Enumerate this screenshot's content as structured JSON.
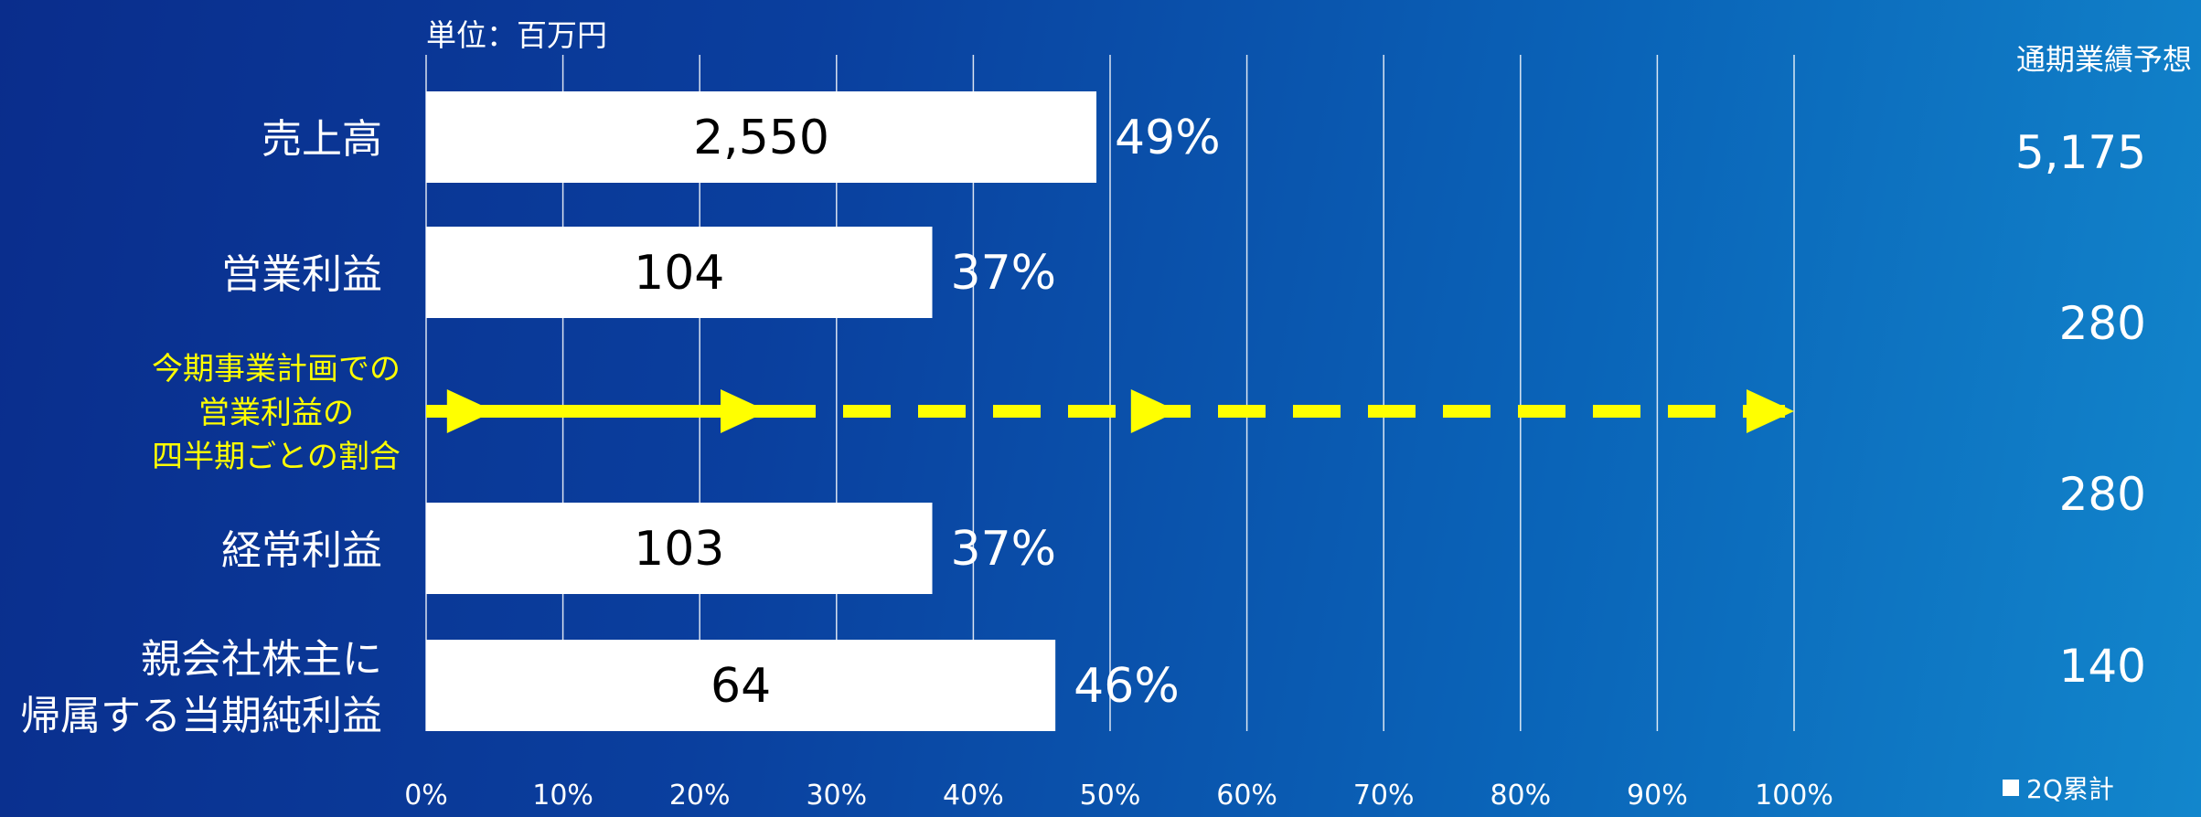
{
  "unit_label": "単位：百万円",
  "forecast_header": "通期業績予想",
  "legend_label": "2Q累計",
  "annotation": {
    "lines": [
      "今期事業計画での",
      "営業利益の",
      "四半期ごとの割合"
    ],
    "color": "#ffff00"
  },
  "chart_data": {
    "type": "bar",
    "orientation": "horizontal",
    "categories": [
      [
        "売上高"
      ],
      [
        "営業利益"
      ],
      [
        "経常利益"
      ],
      [
        "親会社株主に",
        "帰属する当期純利益"
      ]
    ],
    "series": [
      {
        "name": "2Q累計",
        "values": [
          49,
          37,
          37,
          46
        ],
        "bar_labels": [
          "2,550",
          "104",
          "103",
          "64"
        ],
        "pct_labels": [
          "49%",
          "37%",
          "37%",
          "46%"
        ]
      }
    ],
    "forecast_values": [
      "5,175",
      "280",
      "280",
      "140"
    ],
    "xlim": [
      0,
      100
    ],
    "xticks": [
      "0%",
      "10%",
      "20%",
      "30%",
      "40%",
      "50%",
      "60%",
      "70%",
      "80%",
      "90%",
      "100%"
    ],
    "grid": true,
    "quarterly_plan_arrows": [
      5,
      25,
      55,
      100
    ],
    "colors": {
      "bar": "#ffffff",
      "grid": "#ffffff",
      "arrow": "#ffff00"
    }
  }
}
